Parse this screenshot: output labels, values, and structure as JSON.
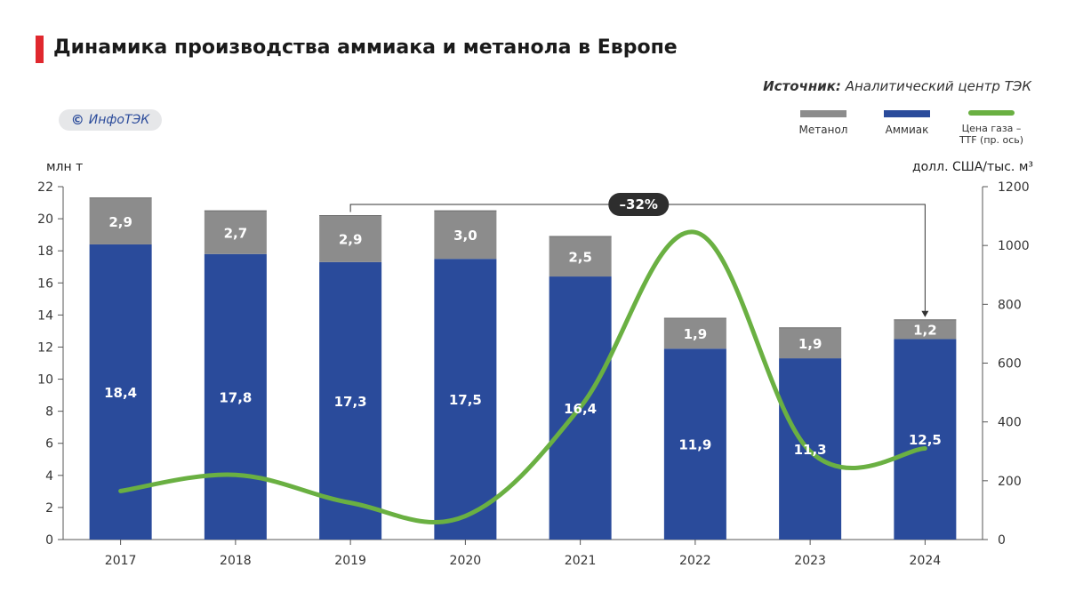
{
  "title": "Динамика производства аммиака и метанола в Европе",
  "source": {
    "label": "Источник:",
    "text": " Аналитический центр ТЭК"
  },
  "badge": {
    "symbol": "©",
    "text": "ИнфоТЭК"
  },
  "legend": [
    {
      "label": "Метанол",
      "color": "#8c8c8c",
      "kind": "bar"
    },
    {
      "label": "Аммиак",
      "color": "#2a4b9b",
      "kind": "bar"
    },
    {
      "label": "Цена газа –\nTTF (пр. ось)",
      "color": "#6ab042",
      "kind": "line"
    }
  ],
  "colors": {
    "ammonia": "#2a4b9b",
    "methanol": "#8c8c8c",
    "gas": "#6ab042",
    "callout": "#2e2e2e",
    "accent": "#e0282e"
  },
  "chart_data": {
    "type": "bar",
    "stacked": true,
    "categories": [
      "2017",
      "2018",
      "2019",
      "2020",
      "2021",
      "2022",
      "2023",
      "2024"
    ],
    "series": [
      {
        "name": "Аммиак",
        "axis": "left",
        "values": [
          18.4,
          17.8,
          17.3,
          17.5,
          16.4,
          11.9,
          11.3,
          12.5
        ],
        "labels": [
          "18,4",
          "17,8",
          "17,3",
          "17,5",
          "16,4",
          "11,9",
          "11,3",
          "12,5"
        ]
      },
      {
        "name": "Метанол",
        "axis": "left",
        "values": [
          2.9,
          2.7,
          2.9,
          3.0,
          2.5,
          1.9,
          1.9,
          1.2
        ],
        "labels": [
          "2,9",
          "2,7",
          "2,9",
          "3,0",
          "2,5",
          "1,9",
          "1,9",
          "1,2"
        ]
      },
      {
        "name": "Цена газа – TTF (пр. ось)",
        "type": "line",
        "axis": "right",
        "values": [
          165,
          220,
          125,
          80,
          450,
          1045,
          300,
          310
        ]
      }
    ],
    "ylabel": "млн т",
    "y2label": "долл. США/тыс. м³",
    "ylim": [
      0,
      22
    ],
    "yticks": [
      0,
      2,
      4,
      6,
      8,
      10,
      12,
      14,
      16,
      18,
      20,
      22
    ],
    "y2lim": [
      0,
      1200
    ],
    "y2ticks": [
      0,
      200,
      400,
      600,
      800,
      1000,
      1200
    ],
    "annotation": {
      "text": "–32%",
      "from": "2019",
      "to": "2024"
    },
    "grid": false,
    "legend_position": "top-right"
  }
}
